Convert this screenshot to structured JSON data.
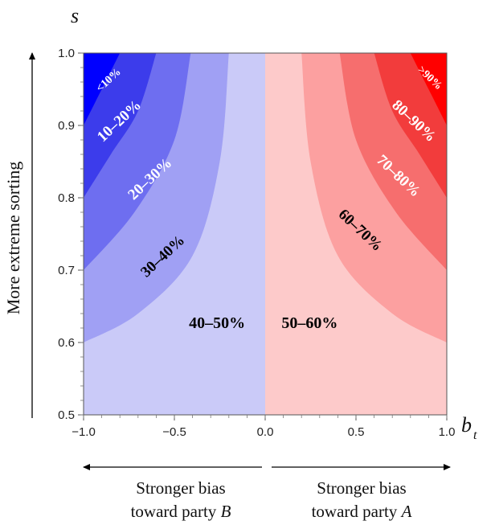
{
  "chart_data": {
    "type": "contour",
    "title": "",
    "xlabel_var": "b",
    "xlabel_sub": "t",
    "ylabel_var": "s",
    "xlim": [
      -1.0,
      1.0
    ],
    "ylim": [
      0.5,
      1.0
    ],
    "x_ticks": [
      "−1.0",
      "−0.5",
      "0.0",
      "0.5",
      "1.0"
    ],
    "x_tick_values": [
      -1.0,
      -0.5,
      0.0,
      0.5,
      1.0
    ],
    "y_ticks": [
      "0.5",
      "0.6",
      "0.7",
      "0.8",
      "0.9",
      "1.0"
    ],
    "y_tick_values": [
      0.5,
      0.6,
      0.7,
      0.8,
      0.9,
      1.0
    ],
    "regions": [
      {
        "label": "<10%",
        "color": "#0000ff",
        "side": "left",
        "band": 4,
        "label_color": "#ffffff"
      },
      {
        "label": "10–20%",
        "color": "#3c3ceb",
        "side": "left",
        "band": 3,
        "label_color": "#ffffff"
      },
      {
        "label": "20–30%",
        "color": "#6e6ef0",
        "side": "left",
        "band": 2,
        "label_color": "#ffffff"
      },
      {
        "label": "30–40%",
        "color": "#a0a0f4",
        "side": "left",
        "band": 1,
        "label_color": "#000000"
      },
      {
        "label": "40–50%",
        "color": "#cacaf8",
        "side": "left",
        "band": 0,
        "label_color": "#000000"
      },
      {
        "label": "50–60%",
        "color": "#fdcaca",
        "side": "right",
        "band": 0,
        "label_color": "#000000"
      },
      {
        "label": "60–70%",
        "color": "#fca0a0",
        "side": "right",
        "band": 1,
        "label_color": "#000000"
      },
      {
        "label": "70–80%",
        "color": "#f66e6e",
        "side": "right",
        "band": 2,
        "label_color": "#ffffff"
      },
      {
        "label": "80–90%",
        "color": "#f23c3c",
        "side": "right",
        "band": 3,
        "label_color": "#ffffff"
      },
      {
        "label": ">90%",
        "color": "#ff0000",
        "side": "right",
        "band": 4,
        "label_color": "#ffffff"
      }
    ],
    "boundary_curves": [
      {
        "level": 1,
        "points": [
          [
            0.2,
            1.0
          ],
          [
            0.25,
            0.85
          ],
          [
            0.4,
            0.72
          ],
          [
            0.7,
            0.64
          ],
          [
            1.0,
            0.6
          ]
        ]
      },
      {
        "level": 2,
        "points": [
          [
            0.41,
            1.0
          ],
          [
            0.5,
            0.88
          ],
          [
            0.72,
            0.78
          ],
          [
            1.0,
            0.7
          ]
        ]
      },
      {
        "level": 3,
        "points": [
          [
            0.6,
            1.0
          ],
          [
            0.7,
            0.92
          ],
          [
            0.85,
            0.86
          ],
          [
            1.0,
            0.8
          ]
        ]
      },
      {
        "level": 4,
        "points": [
          [
            0.8,
            1.0
          ],
          [
            0.9,
            0.95
          ],
          [
            1.0,
            0.9
          ]
        ]
      }
    ]
  },
  "annotations": {
    "y_arrow_label": "More extreme sorting",
    "left_caption_line1": "Stronger bias",
    "left_caption_line2_prefix": "toward party ",
    "left_caption_party": "B",
    "right_caption_line1": "Stronger bias",
    "right_caption_line2_prefix": "toward party ",
    "right_caption_party": "A"
  },
  "colors": {
    "frame": "#555555",
    "text": "#111111"
  }
}
